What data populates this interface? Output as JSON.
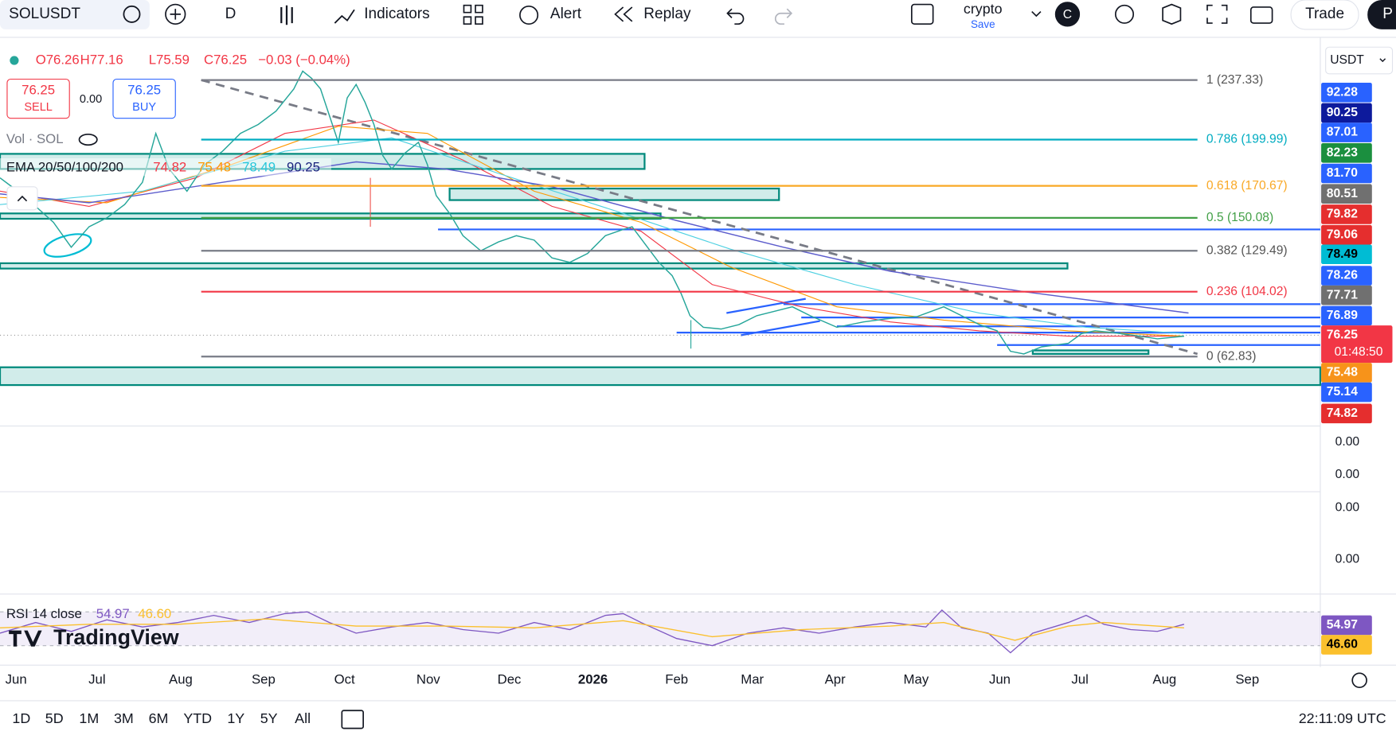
{
  "toolbar": {
    "symbol": "SOLUSDT",
    "interval": "D",
    "buttons": [
      "Indicators",
      "Alert",
      "Replay"
    ],
    "layout_name": "crypto",
    "layout_save": "Save",
    "avatar": "C",
    "trade": "Trade",
    "cut_button": "P"
  },
  "legend": {
    "ohlc": [
      "O76.26",
      "H77.16",
      "L75.59",
      "C76.25"
    ],
    "change": "−0.03 (−0.04%)",
    "sell_price": "76.25",
    "sell_label": "SELL",
    "spread": "0.00",
    "buy_price": "76.25",
    "buy_label": "BUY",
    "volume": "Vol · SOL",
    "ema_label": "EMA 20/50/100/200",
    "ema_values": [
      "74.82",
      "75.48",
      "78.49",
      "90.25"
    ]
  },
  "fib_levels": [
    "1 (237.33)",
    "0.786 (199.99)",
    "0.618 (170.67)",
    "0.5 (150.08)",
    "0.382 (129.49)",
    "0.236 (104.02)",
    "0 (62.83)"
  ],
  "price_scale": {
    "currency": "USDT",
    "labels": [
      "92.28",
      "90.25",
      "87.01",
      "82.23",
      "81.70",
      "80.51",
      "79.82",
      "79.06",
      "78.49",
      "78.26",
      "77.71",
      "76.89",
      "76.25",
      "75.48",
      "75.14",
      "74.82"
    ],
    "countdown": "01:48:50",
    "pane_labels": [
      "0.00",
      "0.00",
      "0.00",
      "0.00"
    ]
  },
  "rsi": {
    "label": "RSI 14 close",
    "values": [
      "54.97",
      "46.60"
    ]
  },
  "logo": "TradingView",
  "time_axis": [
    "Jun",
    "Jul",
    "Aug",
    "Sep",
    "Oct",
    "Nov",
    "Dec",
    "2026",
    "Feb",
    "Mar",
    "Apr",
    "May",
    "Jun",
    "Jul",
    "Aug",
    "Sep"
  ],
  "ranges": [
    "1D",
    "5D",
    "1M",
    "3M",
    "6M",
    "YTD",
    "1Y",
    "5Y",
    "All"
  ],
  "clock": "22:11:09 UTC"
}
